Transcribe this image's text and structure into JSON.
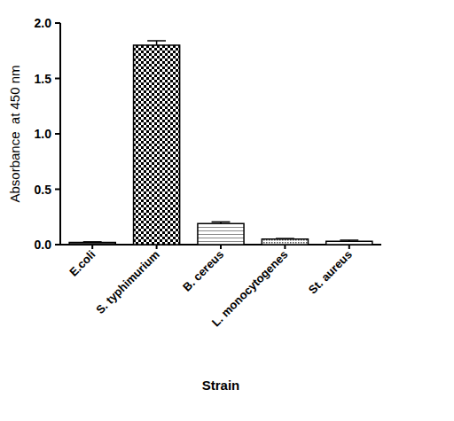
{
  "chart_data": {
    "type": "bar",
    "x_label": "Strain",
    "y_label": "Absorbance  at 450 nm",
    "categories": [
      "E.coli",
      "S. typhimurium",
      "B. cereus",
      "L. monocytogenes",
      "St. aureus"
    ],
    "values": [
      0.02,
      1.8,
      0.19,
      0.05,
      0.03
    ],
    "errors": [
      0.005,
      0.04,
      0.015,
      0.005,
      0.01
    ],
    "color": "#000000",
    "ylim": [
      0,
      2.0
    ],
    "yticks": [
      {
        "value": 0,
        "label": "0.0"
      },
      0.5,
      {
        "value": 1.0,
        "label": "1.0"
      },
      1.5,
      {
        "value": 2.0,
        "label": "2.0"
      }
    ],
    "grid": false
  }
}
